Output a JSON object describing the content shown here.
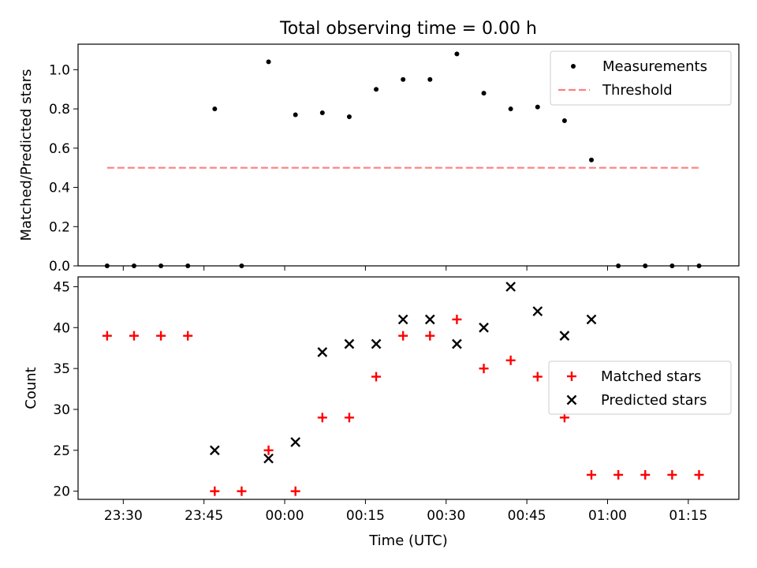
{
  "chart_data": [
    {
      "type": "scatter",
      "title": "Total observing time = 0.00 h",
      "xlabel": "",
      "ylabel": "Matched/Predicted stars",
      "ylim": [
        0,
        1.13
      ],
      "yticks": [
        "0.0",
        "0.2",
        "0.4",
        "0.6",
        "0.8",
        "1.0"
      ],
      "legend_position": "top-right",
      "series": [
        {
          "name": "Measurements",
          "marker": "dot",
          "color": "#000000",
          "x": [
            "23:27",
            "23:32",
            "23:37",
            "23:42",
            "23:47",
            "23:52",
            "23:57",
            "00:02",
            "00:07",
            "00:12",
            "00:17",
            "00:22",
            "00:27",
            "00:32",
            "00:37",
            "00:42",
            "00:47",
            "00:52",
            "00:57",
            "01:02",
            "01:07",
            "01:12",
            "01:17"
          ],
          "y": [
            0.0,
            0.0,
            0.0,
            0.0,
            0.8,
            0.0,
            1.04,
            0.77,
            0.78,
            0.76,
            0.9,
            0.95,
            0.95,
            1.08,
            0.88,
            0.8,
            0.81,
            0.74,
            0.54,
            0.0,
            0.0,
            0.0,
            0.0
          ]
        },
        {
          "name": "Threshold",
          "style": "dashed",
          "color": "#ff7f7f",
          "x": [
            "23:27",
            "01:17"
          ],
          "y": [
            0.5,
            0.5
          ]
        }
      ]
    },
    {
      "type": "scatter",
      "title": "",
      "xlabel": "Time (UTC)",
      "ylabel": "Count",
      "ylim": [
        19,
        46.2
      ],
      "yticks": [
        "20",
        "25",
        "30",
        "35",
        "40",
        "45"
      ],
      "xticks": [
        "23:30",
        "23:45",
        "00:00",
        "00:15",
        "00:30",
        "00:45",
        "01:00",
        "01:15"
      ],
      "legend_position": "center-right",
      "series": [
        {
          "name": "Matched stars",
          "marker": "plus",
          "color": "#ff0000",
          "x": [
            "23:27",
            "23:32",
            "23:37",
            "23:42",
            "23:47",
            "23:52",
            "23:57",
            "00:02",
            "00:07",
            "00:12",
            "00:17",
            "00:22",
            "00:27",
            "00:32",
            "00:37",
            "00:42",
            "00:47",
            "00:52",
            "00:57",
            "01:02",
            "01:07",
            "01:12",
            "01:17"
          ],
          "y": [
            39,
            39,
            39,
            39,
            20,
            20,
            25,
            20,
            29,
            29,
            34,
            39,
            39,
            41,
            35,
            36,
            34,
            29,
            22,
            22,
            22,
            22,
            22
          ]
        },
        {
          "name": "Predicted stars",
          "marker": "x",
          "color": "#000000",
          "x": [
            "23:47",
            "23:57",
            "00:02",
            "00:07",
            "00:12",
            "00:17",
            "00:22",
            "00:27",
            "00:32",
            "00:37",
            "00:42",
            "00:47",
            "00:52",
            "00:57"
          ],
          "y": [
            25,
            24,
            26,
            37,
            38,
            38,
            41,
            41,
            38,
            40,
            45,
            42,
            39,
            41
          ]
        }
      ]
    }
  ]
}
